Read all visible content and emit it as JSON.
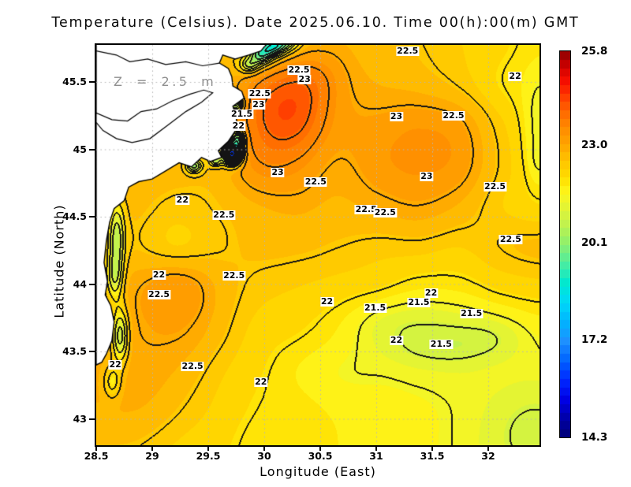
{
  "title": "Temperature (Celsius). Date 2025.06.10. Time 00(h):00(m) GMT",
  "annotation": "Z = 2.5 m",
  "axes": {
    "x": {
      "label": "Longitude (East)",
      "min": 28.5,
      "max": 32.46,
      "ticks": [
        28.5,
        29,
        29.5,
        30,
        30.5,
        31,
        31.5,
        32
      ],
      "tick_labels": [
        "28.5",
        "29",
        "29.5",
        "30",
        "30.5",
        "31",
        "31.5",
        "32"
      ]
    },
    "y": {
      "label": "Latitude (North)",
      "min": 42.8,
      "max": 45.78,
      "ticks": [
        45.5,
        45,
        44.5,
        44,
        43.5,
        43
      ],
      "tick_labels": [
        "45.5",
        "45",
        "44.5",
        "44",
        "43.5",
        "43"
      ]
    }
  },
  "colorbar": {
    "min": 14.3,
    "max": 25.8,
    "quantize_step": 0.25,
    "tick_values": [
      25.8,
      23.0,
      20.1,
      17.2,
      14.3
    ],
    "tick_labels": [
      "25.8",
      "23.0",
      "20.1",
      "17.2",
      "14.3"
    ],
    "stops": [
      [
        0.0,
        "#000072"
      ],
      [
        0.05,
        "#0000a8"
      ],
      [
        0.1,
        "#0000e6"
      ],
      [
        0.15,
        "#0028ff"
      ],
      [
        0.2,
        "#0064ff"
      ],
      [
        0.25,
        "#1e90ff"
      ],
      [
        0.3,
        "#00b4ff"
      ],
      [
        0.35,
        "#00d8f8"
      ],
      [
        0.4,
        "#00e8d0"
      ],
      [
        0.44,
        "#3cecaa"
      ],
      [
        0.48,
        "#74ee84"
      ],
      [
        0.52,
        "#a0f060"
      ],
      [
        0.56,
        "#c8f24a"
      ],
      [
        0.6,
        "#e6f432"
      ],
      [
        0.635,
        "#fef61c"
      ],
      [
        0.67,
        "#ffdf00"
      ],
      [
        0.71,
        "#ffc800"
      ],
      [
        0.757,
        "#ffa600"
      ],
      [
        0.8,
        "#ff8c00"
      ],
      [
        0.84,
        "#ff6c00"
      ],
      [
        0.88,
        "#ff4000"
      ],
      [
        0.92,
        "#f81000"
      ],
      [
        0.96,
        "#d00000"
      ],
      [
        1.0,
        "#8b0000"
      ]
    ]
  },
  "chart_data": {
    "type": "heatmap",
    "title": "Temperature (Celsius). Date 2025.06.10. Time 00(h):00(m) GMT",
    "variable": "Temperature",
    "units": "Celsius",
    "date": "2025.06.10",
    "time": "00(h):00(m) GMT",
    "depth": "2.5 m",
    "xlabel": "Longitude (East)",
    "ylabel": "Latitude (North)",
    "lon_range": [
      28.5,
      32.46
    ],
    "lat_range": [
      42.8,
      45.78
    ],
    "value_range": [
      14.3,
      25.8
    ],
    "contour_interval": 0.5,
    "grid_on": true,
    "legend_position": "right",
    "lon": [
      28.5,
      28.86,
      29.22,
      29.58,
      29.94,
      30.3,
      30.66,
      31.02,
      31.38,
      31.74,
      32.1,
      32.46
    ],
    "lat": [
      45.78,
      45.48,
      45.18,
      44.88,
      44.59,
      44.29,
      43.99,
      43.69,
      43.39,
      43.1,
      42.8
    ],
    "temperature": [
      [
        22.6,
        22.6,
        22.6,
        22.5,
        22.4,
        22.5,
        22.7,
        22.6,
        22.5,
        22.3,
        22.1,
        21.9
      ],
      [
        22.7,
        22.7,
        22.7,
        22.6,
        23.0,
        23.0,
        22.8,
        22.7,
        22.6,
        22.4,
        22.0,
        21.8
      ],
      [
        22.8,
        22.8,
        22.8,
        22.7,
        23.1,
        23.2,
        22.9,
        22.9,
        23.0,
        22.9,
        22.3,
        21.9
      ],
      [
        22.8,
        22.8,
        22.7,
        22.6,
        23.0,
        23.0,
        22.8,
        23.0,
        23.1,
        23.0,
        22.4,
        22.0
      ],
      [
        22.7,
        22.6,
        22.4,
        22.5,
        22.7,
        22.8,
        22.7,
        22.8,
        22.9,
        22.7,
        22.3,
        22.1
      ],
      [
        22.6,
        22.5,
        22.2,
        22.4,
        22.6,
        22.6,
        22.5,
        22.4,
        22.4,
        22.3,
        22.5,
        22.6
      ],
      [
        22.7,
        22.9,
        23.0,
        22.6,
        22.4,
        22.3,
        22.2,
        22.1,
        21.9,
        21.9,
        22.1,
        22.2
      ],
      [
        22.8,
        22.9,
        22.8,
        22.5,
        22.2,
        22.1,
        21.9,
        21.6,
        21.5,
        21.4,
        21.6,
        21.7
      ],
      [
        22.8,
        22.8,
        22.6,
        22.3,
        22.1,
        21.9,
        21.8,
        21.7,
        21.5,
        21.4,
        21.5,
        21.5
      ],
      [
        22.7,
        22.6,
        22.4,
        22.2,
        22.0,
        21.9,
        21.8,
        21.7,
        21.6,
        21.5,
        21.4,
        21.3
      ],
      [
        22.5,
        22.4,
        22.2,
        22.1,
        21.9,
        21.8,
        21.8,
        21.7,
        21.6,
        21.5,
        21.3,
        21.2
      ]
    ],
    "features_legend": "each feature = [lon, lat, amplitude_degC, sigma_lon, sigma_lat]",
    "features": [
      [
        30.17,
        45.3,
        1.0,
        0.26,
        0.21
      ],
      [
        30.42,
        45.55,
        0.55,
        0.22,
        0.17
      ],
      [
        30.05,
        44.92,
        0.35,
        0.28,
        0.2
      ],
      [
        31.33,
        45.05,
        0.3,
        0.5,
        0.3
      ],
      [
        29.3,
        43.8,
        0.3,
        0.28,
        0.35
      ],
      [
        28.9,
        43.1,
        0.2,
        0.3,
        0.25
      ],
      [
        29.71,
        44.97,
        -7.0,
        0.055,
        0.05
      ],
      [
        29.76,
        45.08,
        -3.0,
        0.04,
        0.045
      ],
      [
        29.74,
        45.34,
        -2.8,
        0.045,
        0.04
      ],
      [
        29.66,
        45.44,
        -1.5,
        0.03,
        0.03
      ],
      [
        29.86,
        45.63,
        -1.8,
        0.06,
        0.04
      ],
      [
        29.96,
        45.7,
        -2.6,
        0.07,
        0.05
      ],
      [
        30.07,
        45.76,
        -3.0,
        0.08,
        0.05
      ],
      [
        30.19,
        45.81,
        -2.2,
        0.08,
        0.05
      ],
      [
        29.37,
        44.88,
        -2.4,
        0.05,
        0.035
      ],
      [
        29.56,
        44.92,
        -2.0,
        0.04,
        0.03
      ],
      [
        28.68,
        44.35,
        -1.9,
        0.05,
        0.18
      ],
      [
        28.66,
        44.05,
        -1.5,
        0.05,
        0.12
      ],
      [
        28.71,
        43.62,
        -2.1,
        0.05,
        0.14
      ],
      [
        28.64,
        43.28,
        -1.1,
        0.05,
        0.08
      ],
      [
        31.3,
        43.72,
        -0.45,
        0.35,
        0.13
      ],
      [
        31.55,
        43.52,
        -0.45,
        0.35,
        0.1
      ],
      [
        32.05,
        43.62,
        -0.4,
        0.2,
        0.12
      ],
      [
        32.35,
        42.95,
        -0.35,
        0.3,
        0.25
      ],
      [
        30.75,
        43.35,
        -0.25,
        0.35,
        0.15
      ],
      [
        32.45,
        45.2,
        -0.55,
        0.1,
        0.25
      ],
      [
        32.45,
        44.9,
        -0.35,
        0.08,
        0.12
      ]
    ],
    "contour_labels": [
      [
        "22.5",
        31.28,
        45.73
      ],
      [
        "22.5",
        30.31,
        45.59
      ],
      [
        "23",
        30.36,
        45.52
      ],
      [
        "22",
        32.24,
        45.54
      ],
      [
        "22.5",
        29.96,
        45.41
      ],
      [
        "23",
        29.95,
        45.33
      ],
      [
        "21.5",
        29.8,
        45.26
      ],
      [
        "23",
        31.18,
        45.24
      ],
      [
        "22.5",
        31.69,
        45.25
      ],
      [
        "22",
        29.77,
        45.17
      ],
      [
        "23",
        30.12,
        44.83
      ],
      [
        "23",
        31.45,
        44.8
      ],
      [
        "22.5",
        30.46,
        44.76
      ],
      [
        "22.5",
        32.06,
        44.72
      ],
      [
        "22",
        29.27,
        44.62
      ],
      [
        "22.5",
        29.64,
        44.51
      ],
      [
        "22.5",
        30.91,
        44.55
      ],
      [
        "22.5",
        31.08,
        44.53
      ],
      [
        "22.5",
        32.2,
        44.33
      ],
      [
        "22",
        29.06,
        44.07
      ],
      [
        "22.5",
        29.73,
        44.06
      ],
      [
        "22.5",
        29.06,
        43.92
      ],
      [
        "22",
        30.56,
        43.87
      ],
      [
        "21.5",
        31.38,
        43.86
      ],
      [
        "21.5",
        30.99,
        43.82
      ],
      [
        "21.5",
        31.85,
        43.78
      ],
      [
        "22",
        31.49,
        43.93
      ],
      [
        "22",
        31.18,
        43.58
      ],
      [
        "21.5",
        31.58,
        43.55
      ],
      [
        "22",
        28.67,
        43.4
      ],
      [
        "22.5",
        29.36,
        43.39
      ],
      [
        "22",
        29.97,
        43.27
      ]
    ]
  },
  "map": {
    "land_color": "#ffffff",
    "coast_color": "#000000",
    "coast": [
      [
        28.5,
        45.78
      ],
      [
        30.02,
        45.78
      ],
      [
        29.97,
        45.73
      ],
      [
        29.86,
        45.7
      ],
      [
        29.74,
        45.67
      ],
      [
        29.63,
        45.7
      ],
      [
        29.6,
        45.64
      ],
      [
        29.68,
        45.6
      ],
      [
        29.71,
        45.54
      ],
      [
        29.72,
        45.47
      ],
      [
        29.8,
        45.43
      ],
      [
        29.82,
        45.38
      ],
      [
        29.72,
        45.32
      ],
      [
        29.75,
        45.24
      ],
      [
        29.76,
        45.16
      ],
      [
        29.68,
        45.06
      ],
      [
        29.59,
        44.99
      ],
      [
        29.62,
        44.94
      ],
      [
        29.52,
        44.91
      ],
      [
        29.44,
        44.94
      ],
      [
        29.35,
        44.87
      ],
      [
        29.24,
        44.9
      ],
      [
        29.12,
        44.84
      ],
      [
        29.0,
        44.78
      ],
      [
        28.88,
        44.76
      ],
      [
        28.79,
        44.72
      ],
      [
        28.75,
        44.62
      ],
      [
        28.66,
        44.56
      ],
      [
        28.62,
        44.46
      ],
      [
        28.59,
        44.32
      ],
      [
        28.57,
        44.16
      ],
      [
        28.6,
        44.02
      ],
      [
        28.58,
        43.92
      ],
      [
        28.63,
        43.84
      ],
      [
        28.66,
        43.72
      ],
      [
        28.64,
        43.58
      ],
      [
        28.59,
        43.48
      ],
      [
        28.55,
        43.42
      ],
      [
        28.5,
        43.4
      ]
    ],
    "lagoon": [
      [
        28.5,
        45.27
      ],
      [
        28.64,
        45.22
      ],
      [
        28.78,
        45.21
      ],
      [
        28.9,
        45.28
      ],
      [
        29.04,
        45.3
      ],
      [
        29.18,
        45.36
      ],
      [
        29.34,
        45.41
      ],
      [
        29.46,
        45.44
      ],
      [
        29.54,
        45.42
      ],
      [
        29.44,
        45.35
      ],
      [
        29.3,
        45.28
      ],
      [
        29.14,
        45.18
      ],
      [
        28.98,
        45.08
      ],
      [
        28.82,
        45.05
      ],
      [
        28.68,
        45.08
      ],
      [
        28.56,
        45.14
      ],
      [
        28.5,
        45.2
      ]
    ],
    "river": [
      [
        28.5,
        45.73
      ],
      [
        28.68,
        45.7
      ],
      [
        28.8,
        45.65
      ],
      [
        28.96,
        45.67
      ],
      [
        29.12,
        45.63
      ],
      [
        29.3,
        45.65
      ],
      [
        29.45,
        45.62
      ],
      [
        29.6,
        45.64
      ]
    ]
  },
  "grid_lines": {
    "color": "#b6b6b6",
    "style": "dotted"
  },
  "contour_color": "#141414"
}
